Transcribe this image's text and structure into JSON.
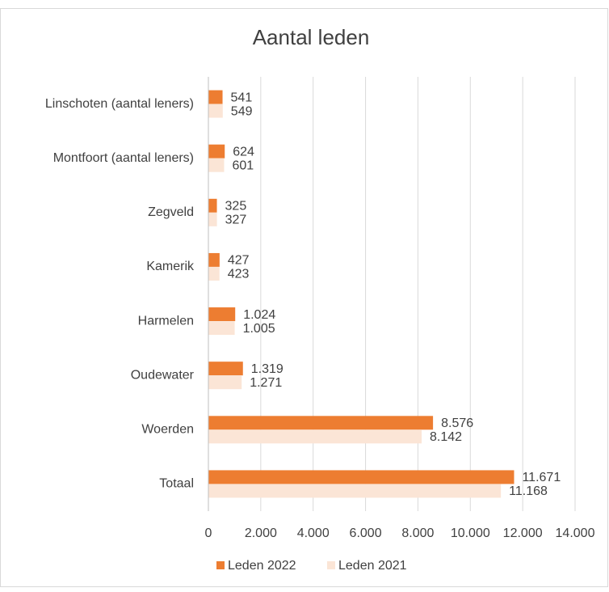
{
  "chart_data": {
    "type": "bar",
    "orientation": "horizontal",
    "title": "Aantal leden",
    "categories": [
      "Linschoten  (aantal leners)",
      "Montfoort (aantal leners)",
      "Zegveld",
      "Kamerik",
      "Harmelen",
      "Oudewater",
      "Woerden",
      "Totaal"
    ],
    "series": [
      {
        "name": "Leden 2022",
        "color": "#ed7d31",
        "values": [
          541,
          624,
          325,
          427,
          1024,
          1319,
          8576,
          11671
        ],
        "value_labels": [
          "541",
          "624",
          "325",
          "427",
          "1.024",
          "1.319",
          "8.576",
          "11.671"
        ]
      },
      {
        "name": "Leden 2021",
        "color": "#fbe5d6",
        "values": [
          549,
          601,
          327,
          423,
          1005,
          1271,
          8142,
          11168
        ],
        "value_labels": [
          "549",
          "601",
          "327",
          "423",
          "1.005",
          "1.271",
          "8.142",
          "11.168"
        ]
      }
    ],
    "xlim": [
      0,
      14000
    ],
    "xticks": [
      0,
      {
        "value": 2000,
        "label": "2.000"
      },
      {
        "value": 4000,
        "label": "4.000"
      },
      {
        "value": 6000,
        "label": "6.000"
      },
      {
        "value": 8000,
        "label": "8.000"
      },
      {
        "value": 10000,
        "label": "10.000"
      },
      {
        "value": 12000,
        "label": "12.000"
      },
      {
        "value": 14000,
        "label": "14.000"
      }
    ],
    "grid": true,
    "legend": "bottom"
  }
}
